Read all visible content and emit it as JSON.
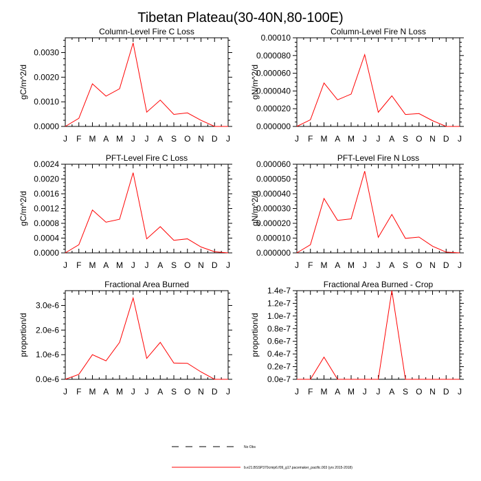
{
  "figure_title": "Tibetan Plateau(30-40N,80-100E)",
  "legend": {
    "obs_label": "No Obs",
    "model_label": "b.e21.BSSP370cmip6.f09_g17.pacemaker_pacific.003 (yrs 2015-2018)",
    "obs_color": "#000000",
    "model_color": "#ff0000",
    "placement": "bottom-center"
  },
  "chart_data": [
    {
      "type": "line",
      "title": "Column-Level Fire C Loss",
      "ylabel": "gC/m^2/d",
      "categories": [
        "J",
        "F",
        "M",
        "A",
        "M",
        "J",
        "J",
        "A",
        "S",
        "O",
        "N",
        "D",
        "J"
      ],
      "ylim": [
        0,
        0.0036
      ],
      "yticks": [
        0,
        0.001,
        0.002,
        0.003
      ],
      "ytick_labels": [
        "0.0000",
        "0.0010",
        "0.0020",
        "0.0030"
      ],
      "series": [
        {
          "values": [
            0.0,
            0.00033,
            0.00173,
            0.00123,
            0.00153,
            0.00339,
            0.00058,
            0.00107,
            0.00049,
            0.00055,
            0.00025,
            0.0,
            0.0
          ]
        }
      ]
    },
    {
      "type": "line",
      "title": "Column-Level Fire N Loss",
      "ylabel": "gN/m^2/d",
      "categories": [
        "J",
        "F",
        "M",
        "A",
        "M",
        "J",
        "J",
        "A",
        "S",
        "O",
        "N",
        "D",
        "J"
      ],
      "ylim": [
        0,
        0.0001
      ],
      "yticks": [
        0,
        2e-05,
        4e-05,
        6e-05,
        8e-05,
        0.0001
      ],
      "ytick_labels": [
        "0.000000",
        "0.000020",
        "0.000040",
        "0.000060",
        "0.000080",
        "0.00010"
      ],
      "series": [
        {
          "values": [
            0.0,
            7.5e-06,
            4.9e-05,
            3e-05,
            3.65e-05,
            8.1e-05,
            1.6e-05,
            3.45e-05,
            1.35e-05,
            1.45e-05,
            6.5e-06,
            0.0,
            0.0
          ]
        }
      ]
    },
    {
      "type": "line",
      "title": "PFT-Level Fire C Loss",
      "ylabel": "gC/m^2/d",
      "categories": [
        "J",
        "F",
        "M",
        "A",
        "M",
        "J",
        "J",
        "A",
        "S",
        "O",
        "N",
        "D",
        "J"
      ],
      "ylim": [
        0,
        0.0024
      ],
      "yticks": [
        0,
        0.0004,
        0.0008,
        0.0012,
        0.0016,
        0.002,
        0.0024
      ],
      "ytick_labels": [
        "0.0000",
        "0.0004",
        "0.0008",
        "0.0012",
        "0.0016",
        "0.0020",
        "0.0024"
      ],
      "series": [
        {
          "values": [
            0.0,
            0.00022,
            0.00116,
            0.00083,
            0.00091,
            0.00217,
            0.00038,
            0.00071,
            0.00034,
            0.00038,
            0.00016,
            3e-05,
            0.0
          ]
        }
      ]
    },
    {
      "type": "line",
      "title": "PFT-Level Fire N Loss",
      "ylabel": "gN/m^2/d",
      "categories": [
        "J",
        "F",
        "M",
        "A",
        "M",
        "J",
        "J",
        "A",
        "S",
        "O",
        "N",
        "D",
        "J"
      ],
      "ylim": [
        0,
        6e-05
      ],
      "yticks": [
        0,
        1e-05,
        2e-05,
        3e-05,
        4e-05,
        5e-05,
        6e-05
      ],
      "ytick_labels": [
        "0.000000",
        "0.000010",
        "0.000020",
        "0.000030",
        "0.000040",
        "0.000050",
        "0.000060"
      ],
      "series": [
        {
          "values": [
            0.0,
            5.5e-06,
            3.68e-05,
            2.2e-05,
            2.3e-05,
            5.53e-05,
            1.05e-05,
            2.6e-05,
            9.8e-06,
            1.07e-05,
            4.5e-06,
            5e-07,
            0.0
          ]
        }
      ]
    },
    {
      "type": "line",
      "title": "Fractional Area Burned",
      "ylabel": "proportion/d",
      "categories": [
        "J",
        "F",
        "M",
        "A",
        "M",
        "J",
        "J",
        "A",
        "S",
        "O",
        "N",
        "D",
        "J"
      ],
      "ylim": [
        0,
        3.6e-06
      ],
      "yticks": [
        0,
        1e-06,
        2e-06,
        3e-06
      ],
      "ytick_labels": [
        "0.0e-6",
        "1.0e-6",
        "2.0e-6",
        "3.0e-6"
      ],
      "series": [
        {
          "values": [
            0.0,
            2e-07,
            1e-06,
            7.5e-07,
            1.5e-06,
            3.3e-06,
            8.5e-07,
            1.5e-06,
            6.6e-07,
            6.5e-07,
            3e-07,
            0.0,
            0.0
          ]
        }
      ]
    },
    {
      "type": "line",
      "title": "Fractional Area Burned - Crop",
      "ylabel": "proportion/d",
      "categories": [
        "J",
        "F",
        "M",
        "A",
        "M",
        "J",
        "J",
        "A",
        "S",
        "O",
        "N",
        "D",
        "J"
      ],
      "ylim": [
        0,
        1.4e-07
      ],
      "yticks": [
        0,
        2e-08,
        4e-08,
        6e-08,
        8e-08,
        1e-07,
        1.2e-07,
        1.4e-07
      ],
      "ytick_labels": [
        "0.0e-7",
        "0.2e-7",
        "0.4e-7",
        "0.6e-7",
        "0.8e-7",
        "1.0e-7",
        "1.2e-7",
        "1.4e-7"
      ],
      "series": [
        {
          "values": [
            0.0,
            0.0,
            3.5e-08,
            0.0,
            0.0,
            0.0,
            0.0,
            1.4e-07,
            0.0,
            0.0,
            0.0,
            0.0,
            0.0
          ]
        }
      ]
    }
  ]
}
